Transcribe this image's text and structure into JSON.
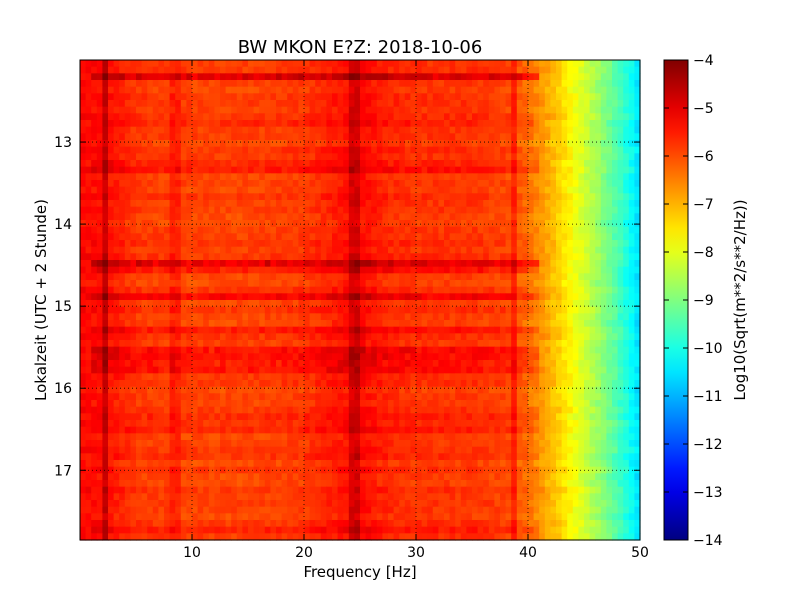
{
  "chart_data": {
    "type": "heatmap",
    "title": "BW MKON E?Z: 2018-10-06",
    "xlabel": "Frequency [Hz]",
    "ylabel": "Lokalzeit (UTC + 2 Stunde)",
    "xlim": [
      0,
      50
    ],
    "ylim": [
      17.85,
      12.0
    ],
    "y_inverted": true,
    "xticks": [
      10,
      20,
      30,
      40,
      50
    ],
    "xtick_labels": [
      "10",
      "20",
      "30",
      "40",
      "50"
    ],
    "yticks": [
      13,
      14,
      15,
      16,
      17
    ],
    "ytick_labels": [
      "13",
      "14",
      "15",
      "16",
      "17"
    ],
    "grid": true,
    "colorscale": "jet",
    "colorbar": {
      "label": "Log10(Sqrt(m**2/s**2/Hz))",
      "min": -14,
      "max": -4,
      "ticks": [
        -4,
        -5,
        -6,
        -7,
        -8,
        -9,
        -10,
        -11,
        -12,
        -13,
        -14
      ],
      "tick_labels": [
        "−4",
        "−5",
        "−6",
        "−7",
        "−8",
        "−9",
        "−10",
        "−11",
        "−12",
        "−13",
        "−14"
      ]
    },
    "spectrum_profile": {
      "frequency_hz": [
        0,
        2.5,
        5,
        10,
        15,
        20,
        23,
        25,
        27,
        30,
        35,
        38,
        40,
        42,
        44,
        46,
        48,
        50
      ],
      "log10_amplitude": [
        -5.3,
        -5.4,
        -5.8,
        -5.9,
        -5.9,
        -5.8,
        -5.5,
        -5.3,
        -5.6,
        -5.75,
        -5.75,
        -5.9,
        -6.3,
        -7.0,
        -7.8,
        -8.6,
        -9.5,
        -10.6
      ]
    },
    "time_features": [
      {
        "time_h": 12.18,
        "delta": 1.1
      },
      {
        "time_h": 12.78,
        "delta": 0.4
      },
      {
        "time_h": 13.3,
        "delta": 0.35
      },
      {
        "time_h": 14.45,
        "delta": 1.1
      },
      {
        "time_h": 14.55,
        "delta": 0.5
      },
      {
        "time_h": 14.88,
        "delta": 0.6
      },
      {
        "time_h": 15.28,
        "delta": 0.35
      },
      {
        "time_h": 15.58,
        "delta": 0.6
      },
      {
        "time_h": 15.73,
        "delta": 0.45
      },
      {
        "time_h": 16.33,
        "delta": 0.4
      },
      {
        "time_h": 16.53,
        "delta": 0.35
      },
      {
        "time_h": 16.85,
        "delta": 0.3
      },
      {
        "time_h": 17.72,
        "delta": 0.3
      }
    ],
    "frequency_features": [
      {
        "frequency_hz": 2.4,
        "delta": 0.7
      },
      {
        "frequency_hz": 8.5,
        "delta": 0.3
      },
      {
        "frequency_hz": 24.5,
        "delta": 0.5
      },
      {
        "frequency_hz": 38.8,
        "delta": 0.5
      }
    ]
  }
}
